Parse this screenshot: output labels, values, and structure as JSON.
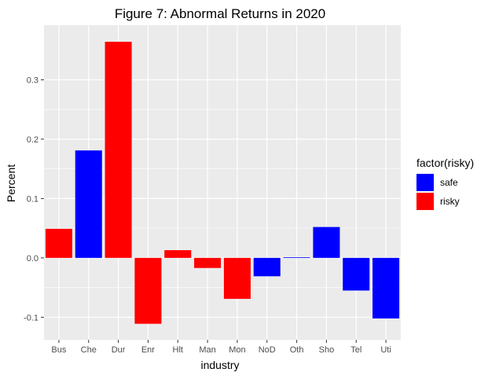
{
  "chart_data": {
    "type": "bar",
    "title": "Figure 7: Abnormal Returns in 2020",
    "xlabel": "industry",
    "ylabel": "Percent",
    "categories": [
      "Bus",
      "Che",
      "Dur",
      "Enr",
      "Hlt",
      "Man",
      "Mon",
      "NoD",
      "Oth",
      "Sho",
      "Tel",
      "Uti"
    ],
    "values": [
      0.049,
      0.181,
      0.364,
      -0.111,
      0.013,
      -0.017,
      -0.069,
      -0.031,
      0.001,
      0.052,
      -0.055,
      -0.102
    ],
    "groups": [
      "risky",
      "safe",
      "risky",
      "risky",
      "risky",
      "risky",
      "risky",
      "safe",
      "safe",
      "safe",
      "safe",
      "safe"
    ],
    "ylim": [
      -0.138,
      0.392
    ],
    "yticks": [
      -0.1,
      0.0,
      0.1,
      0.2,
      0.3
    ],
    "ytick_labels": [
      "-0.1",
      "0.0",
      "0.1",
      "0.2",
      "0.3"
    ],
    "grid": true,
    "legend": {
      "title": "factor(risky)",
      "position": "right",
      "entries": [
        {
          "label": "safe",
          "key": "safe",
          "color": "#0000FF"
        },
        {
          "label": "risky",
          "key": "risky",
          "color": "#FF0000"
        }
      ]
    },
    "colors": {
      "safe": "#0000FF",
      "risky": "#FF0000",
      "panel": "#EBEBEB",
      "grid": "#FFFFFF"
    }
  }
}
